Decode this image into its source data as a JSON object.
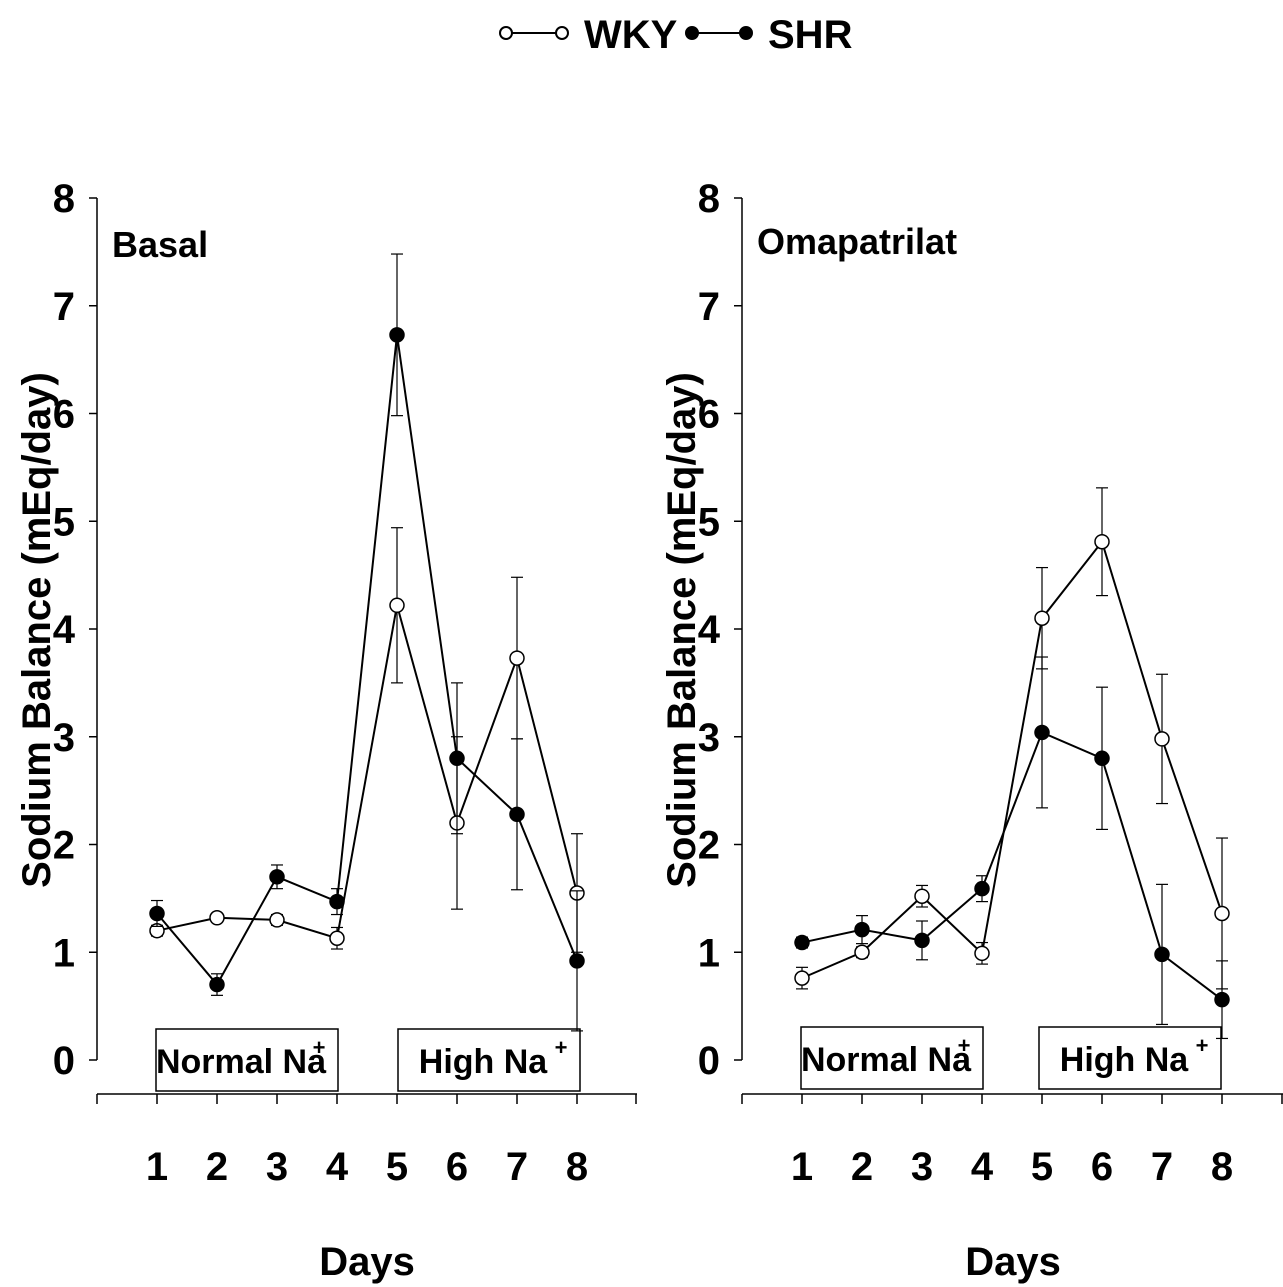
{
  "legend": [
    {
      "name": "WKY",
      "marker": "open-circle"
    },
    {
      "name": "SHR",
      "marker": "filled-circle"
    }
  ],
  "colors": {
    "line": "#000000",
    "open_fill": "#ffffff",
    "filled_fill": "#000000"
  },
  "chart_data": [
    {
      "type": "line",
      "title": "Basal",
      "xlabel": "Days",
      "ylabel": "Sodium Balance (mEq/day)",
      "x": [
        1,
        2,
        3,
        4,
        5,
        6,
        7,
        8
      ],
      "xticks": [
        "1",
        "2",
        "3",
        "4",
        "5",
        "6",
        "7",
        "8"
      ],
      "yticks": [
        "0",
        "1",
        "2",
        "3",
        "4",
        "5",
        "6",
        "7",
        "8"
      ],
      "ylim": [
        0,
        8
      ],
      "grid": false,
      "legend_position": "top-center",
      "series": [
        {
          "name": "WKY",
          "marker": "open-circle",
          "values": [
            1.2,
            1.32,
            1.3,
            1.13,
            4.22,
            2.2,
            3.73,
            1.55
          ],
          "err": [
            0.05,
            0.04,
            0.05,
            0.1,
            0.72,
            0.8,
            0.75,
            0.55
          ]
        },
        {
          "name": "SHR",
          "marker": "filled-circle",
          "values": [
            1.36,
            0.7,
            1.7,
            1.47,
            6.73,
            2.8,
            2.28,
            0.92
          ],
          "err": [
            0.12,
            0.1,
            0.11,
            0.12,
            0.75,
            0.7,
            0.7,
            0.65
          ]
        }
      ],
      "annotations": [
        {
          "text": "Normal Na",
          "sup": "+",
          "x_from": 1,
          "x_to": 4
        },
        {
          "text": "High Na",
          "sup": "+",
          "x_from": 5,
          "x_to": 8
        }
      ]
    },
    {
      "type": "line",
      "title": "Omapatrilat",
      "xlabel": "Days",
      "ylabel": "Sodium Balance (mEq/day)",
      "x": [
        1,
        2,
        3,
        4,
        5,
        6,
        7,
        8
      ],
      "xticks": [
        "1",
        "2",
        "3",
        "4",
        "5",
        "6",
        "7",
        "8"
      ],
      "yticks": [
        "0",
        "1",
        "2",
        "3",
        "4",
        "5",
        "6",
        "7",
        "8"
      ],
      "ylim": [
        0,
        8
      ],
      "grid": false,
      "legend_position": "top-center",
      "series": [
        {
          "name": "WKY",
          "marker": "open-circle",
          "values": [
            0.76,
            1.0,
            1.52,
            0.99,
            4.1,
            4.81,
            2.98,
            1.36
          ],
          "err": [
            0.1,
            0.05,
            0.1,
            0.1,
            0.47,
            0.5,
            0.6,
            0.7
          ]
        },
        {
          "name": "SHR",
          "marker": "filled-circle",
          "values": [
            1.09,
            1.21,
            1.11,
            1.59,
            3.04,
            2.8,
            0.98,
            0.56
          ],
          "err": [
            0.05,
            0.13,
            0.18,
            0.12,
            0.7,
            0.66,
            0.65,
            0.36
          ]
        }
      ],
      "annotations": [
        {
          "text": "Normal Na",
          "sup": "+",
          "x_from": 1,
          "x_to": 4
        },
        {
          "text": "High Na",
          "sup": "+",
          "x_from": 5,
          "x_to": 8
        }
      ]
    }
  ]
}
